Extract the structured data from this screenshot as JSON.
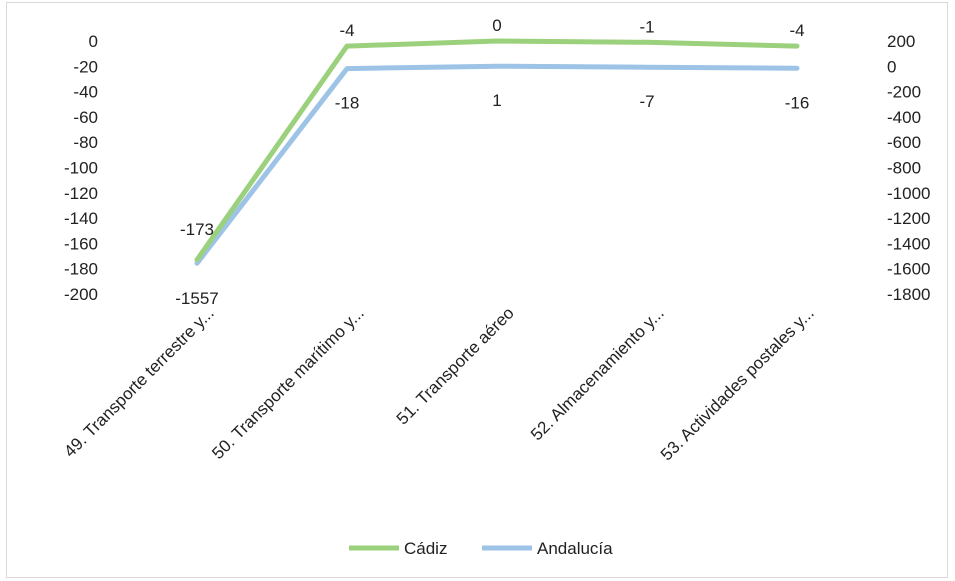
{
  "chart_data": {
    "type": "line",
    "categories": [
      "49. Transporte terrestre y...",
      "50. Transporte marítimo y...",
      "51. Transporte aéreo",
      "52. Almacenamiento y...",
      "53. Actividades postales y..."
    ],
    "series": [
      {
        "name": "Cádiz",
        "axis": "left",
        "values": [
          -173,
          -4,
          0,
          -1,
          -4
        ],
        "color": "#9bd07c"
      },
      {
        "name": "Andalucía",
        "axis": "right",
        "values": [
          -1557,
          -18,
          1,
          -7,
          -16
        ],
        "color": "#9dc3e6"
      }
    ],
    "left_axis": {
      "min": -200,
      "max": 0,
      "step": 20
    },
    "right_axis": {
      "min": -1800,
      "max": 200,
      "step": 200
    },
    "legend_position": "bottom",
    "grid": false
  }
}
